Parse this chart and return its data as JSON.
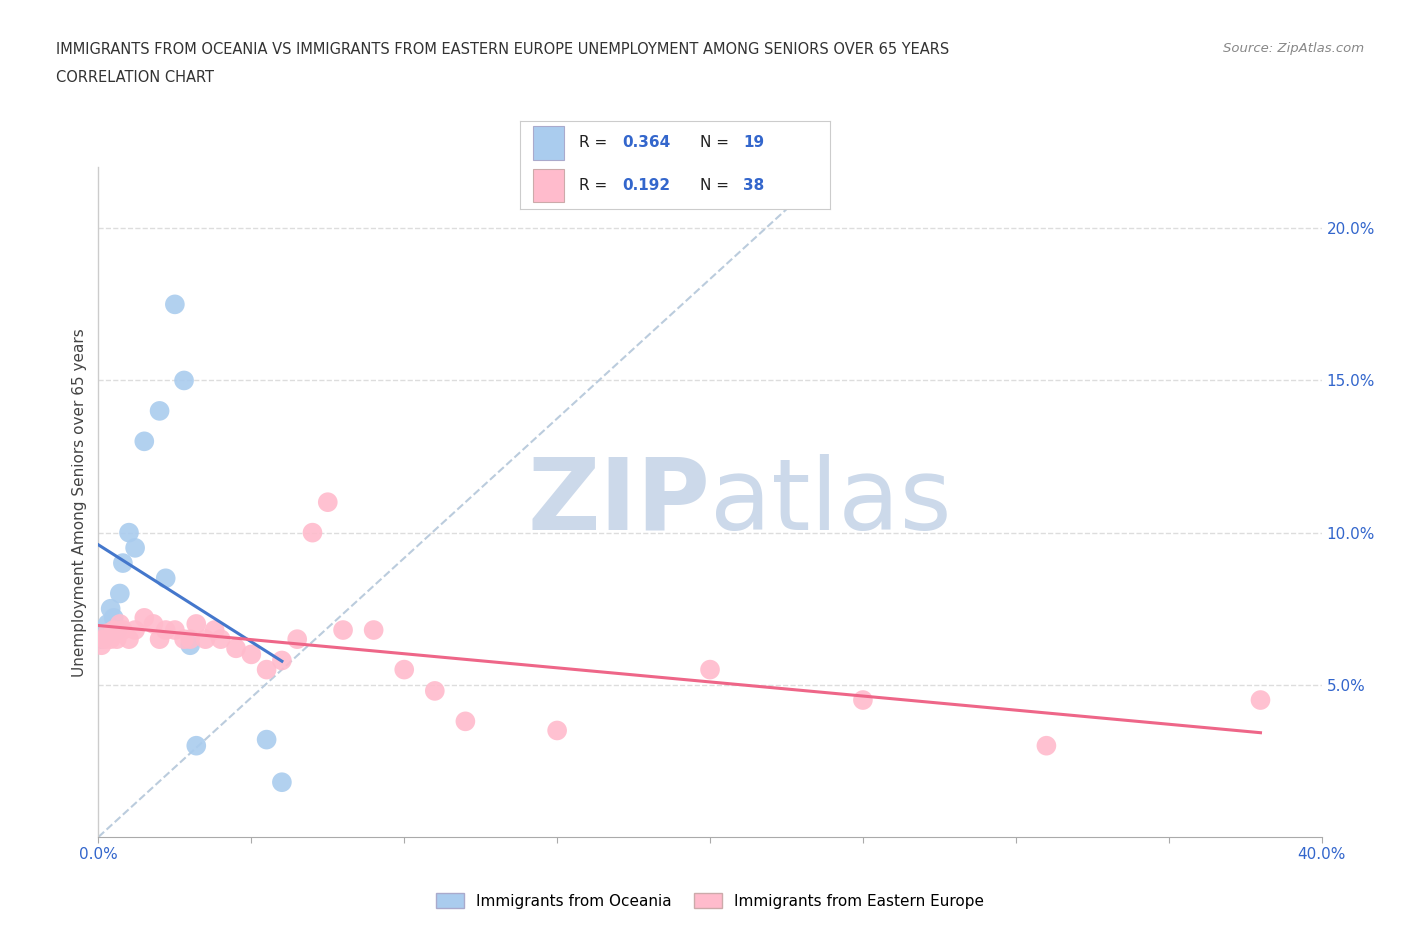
{
  "title_line1": "IMMIGRANTS FROM OCEANIA VS IMMIGRANTS FROM EASTERN EUROPE UNEMPLOYMENT AMONG SENIORS OVER 65 YEARS",
  "title_line2": "CORRELATION CHART",
  "source": "Source: ZipAtlas.com",
  "ylabel": "Unemployment Among Seniors over 65 years",
  "xlim": [
    0.0,
    0.4
  ],
  "ylim": [
    0.0,
    0.22
  ],
  "yticks_right": [
    0.05,
    0.1,
    0.15,
    0.2
  ],
  "ytick_right_labels": [
    "5.0%",
    "10.0%",
    "15.0%",
    "20.0%"
  ],
  "R_oceania": 0.364,
  "N_oceania": 19,
  "R_eastern": 0.192,
  "N_eastern": 38,
  "color_oceania": "#aaccee",
  "color_eastern": "#ffbbcc",
  "line_color_oceania": "#4477cc",
  "line_color_eastern": "#ee6688",
  "diagonal_color": "#bbccdd",
  "watermark_color": "#ccd9ea",
  "legend_label_oceania": "Immigrants from Oceania",
  "legend_label_eastern": "Immigrants from Eastern Europe",
  "oceania_x": [
    0.001,
    0.002,
    0.003,
    0.004,
    0.005,
    0.006,
    0.007,
    0.008,
    0.01,
    0.012,
    0.015,
    0.02,
    0.022,
    0.025,
    0.028,
    0.03,
    0.032,
    0.055,
    0.06
  ],
  "oceania_y": [
    0.065,
    0.066,
    0.07,
    0.075,
    0.072,
    0.068,
    0.08,
    0.09,
    0.1,
    0.095,
    0.13,
    0.14,
    0.085,
    0.175,
    0.15,
    0.063,
    0.03,
    0.032,
    0.018
  ],
  "eastern_x": [
    0.001,
    0.002,
    0.003,
    0.004,
    0.005,
    0.006,
    0.007,
    0.008,
    0.01,
    0.012,
    0.015,
    0.018,
    0.02,
    0.022,
    0.025,
    0.028,
    0.03,
    0.032,
    0.035,
    0.038,
    0.04,
    0.045,
    0.05,
    0.055,
    0.06,
    0.065,
    0.07,
    0.075,
    0.08,
    0.09,
    0.1,
    0.11,
    0.12,
    0.15,
    0.2,
    0.25,
    0.31,
    0.38
  ],
  "eastern_y": [
    0.063,
    0.065,
    0.067,
    0.065,
    0.068,
    0.065,
    0.07,
    0.068,
    0.065,
    0.068,
    0.072,
    0.07,
    0.065,
    0.068,
    0.068,
    0.065,
    0.065,
    0.07,
    0.065,
    0.068,
    0.065,
    0.062,
    0.06,
    0.055,
    0.058,
    0.065,
    0.1,
    0.11,
    0.068,
    0.068,
    0.055,
    0.048,
    0.038,
    0.035,
    0.055,
    0.045,
    0.03,
    0.045
  ],
  "background_color": "#ffffff",
  "grid_color": "#dddddd",
  "tick_color": "#aaaaaa",
  "label_color": "#3366cc"
}
